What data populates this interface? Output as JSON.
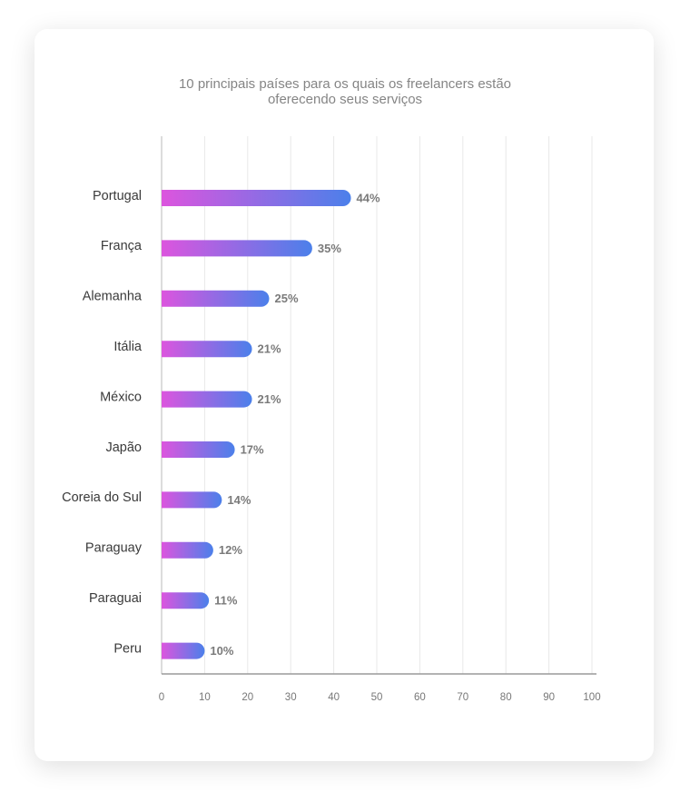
{
  "chart_data": {
    "type": "bar",
    "orientation": "horizontal",
    "title": "10 principais países para os quais os freelancers estão oferecendo seus serviços",
    "categories": [
      "Portugal",
      "França",
      "Alemanha",
      "Itália",
      "México",
      "Japão",
      "Coreia do Sul",
      "Paraguay",
      "Paraguai",
      "Peru"
    ],
    "values": [
      44,
      35,
      25,
      21,
      21,
      17,
      14,
      12,
      11,
      10
    ],
    "value_labels": [
      "44%",
      "35%",
      "25%",
      "21%",
      "21%",
      "17%",
      "14%",
      "12%",
      "11%",
      "10%"
    ],
    "gradient": [
      "#dc55de",
      "#4b80ea"
    ],
    "xlim": [
      0,
      100
    ],
    "xticks": [
      0,
      10,
      20,
      30,
      40,
      50,
      60,
      70,
      80,
      90,
      100
    ],
    "grid": true
  }
}
